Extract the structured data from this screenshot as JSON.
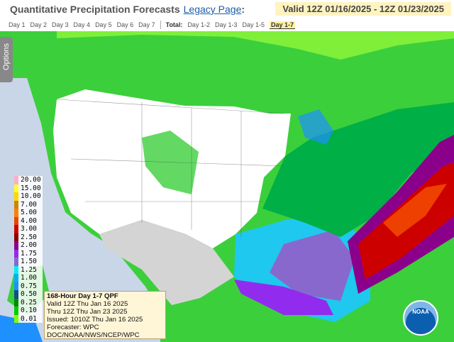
{
  "header": {
    "title": "Quantitative Precipitation Forecasts",
    "link": "Legacy Page",
    "link_suffix": ":",
    "valid": "Valid 12Z 01/16/2025 - 12Z 01/23/2025"
  },
  "tabs": {
    "days": [
      "Day 1",
      "Day 2",
      "Day 3",
      "Day 4",
      "Day 5",
      "Day 6",
      "Day 7"
    ],
    "total_label": "Total:",
    "totals": [
      "Day 1-2",
      "Day 1-3",
      "Day 1-5",
      "Day 1-7"
    ],
    "active_total": 3
  },
  "options": "Options",
  "legend": {
    "labels": [
      "20.00",
      "15.00",
      "10.00",
      "7.00",
      "5.00",
      "4.00",
      "3.00",
      "2.50",
      "2.00",
      "1.75",
      "1.50",
      "1.25",
      "1.00",
      "0.75",
      "0.50",
      "0.25",
      "0.10",
      "0.01"
    ],
    "colors": [
      "#ffaec9",
      "#ffff33",
      "#ffd700",
      "#cd8500",
      "#ff7f00",
      "#ee4000",
      "#cd0000",
      "#8b0000",
      "#8b008b",
      "#912cee",
      "#8968cd",
      "#00eeee",
      "#00b2ee",
      "#1e90ff",
      "#104e8b",
      "#008b00",
      "#00cd00",
      "#7fff00"
    ]
  },
  "info": {
    "lines": [
      "168-Hour Day 1-7 QPF",
      "Valid 12Z Thu Jan 16 2025",
      "Thru 12Z Thu Jan 23 2025",
      "Issued: 1010Z Thu Jan 16 2025",
      "Forecaster: WPC",
      "DOC/NOAA/NWS/NCEP/WPC"
    ]
  },
  "logo": "NOAA"
}
